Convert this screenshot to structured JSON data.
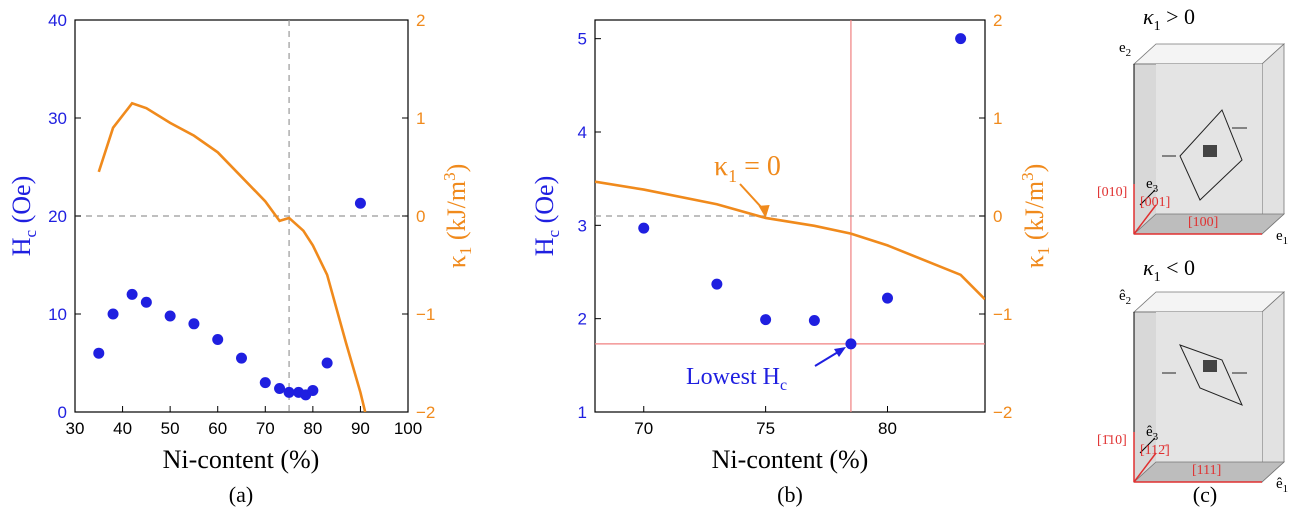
{
  "chart_data": [
    {
      "type": "scatter",
      "panel_label": "(a)",
      "xlabel": "Ni-content (%)",
      "ylabel_left": "H",
      "ylabel_left_sub": "c",
      "ylabel_left_unit": " (Oe)",
      "ylabel_right": "κ",
      "ylabel_right_sub": "1",
      "ylabel_right_unit": " (kJ/m",
      "ylabel_right_sup": "3",
      "ylabel_right_close": ")",
      "xlim": [
        30,
        100
      ],
      "ylim_left": [
        0,
        40
      ],
      "ylim_right": [
        -2,
        2
      ],
      "xticks": [
        "30",
        "40",
        "50",
        "60",
        "70",
        "80",
        "90",
        "100"
      ],
      "yticks_left": [
        "0",
        "10",
        "20",
        "30",
        "40"
      ],
      "yticks_right": [
        "−2",
        "−1",
        "0",
        "1",
        "2"
      ],
      "series": [
        {
          "name": "",
          "axis": "left",
          "kind": "scatter",
          "color": "#1f1fe0",
          "x": [
            35,
            38,
            42,
            45,
            50,
            55,
            60,
            65,
            70,
            73,
            75,
            77,
            78.5,
            80,
            83,
            90
          ],
          "y": [
            6.0,
            10.0,
            12.0,
            11.2,
            9.8,
            9.0,
            7.4,
            5.5,
            3.0,
            2.4,
            2.0,
            2.0,
            1.75,
            2.2,
            5.0,
            21.3
          ]
        },
        {
          "name": "",
          "axis": "right",
          "kind": "line",
          "color": "#f08a1c",
          "x": [
            35,
            38,
            42,
            45,
            50,
            55,
            60,
            65,
            70,
            73,
            75,
            78,
            80,
            83,
            87,
            90,
            91
          ],
          "y": [
            0.45,
            0.9,
            1.15,
            1.1,
            0.95,
            0.82,
            0.65,
            0.4,
            0.15,
            -0.05,
            -0.02,
            -0.15,
            -0.3,
            -0.6,
            -1.3,
            -1.8,
            -2.0
          ]
        }
      ],
      "ref_lines": {
        "x": 75,
        "y_right": 0
      }
    },
    {
      "type": "scatter",
      "panel_label": "(b)",
      "xlabel": "Ni-content (%)",
      "ylabel_left": "H",
      "ylabel_left_sub": "c",
      "ylabel_left_unit": " (Oe)",
      "ylabel_right": "κ",
      "ylabel_right_sub": "1",
      "ylabel_right_unit": " (kJ/m",
      "ylabel_right_sup": "3",
      "ylabel_right_close": ")",
      "xlim": [
        68,
        84
      ],
      "ylim_left": [
        1,
        5.2
      ],
      "ylim_right": [
        -2,
        2
      ],
      "xticks": [
        "70",
        "75",
        "80"
      ],
      "yticks_left": [
        "1",
        "2",
        "3",
        "4",
        "5"
      ],
      "yticks_right": [
        "−2",
        "−1",
        "0",
        "1",
        "2"
      ],
      "series": [
        {
          "name": "",
          "axis": "left",
          "kind": "scatter",
          "color": "#1f1fe0",
          "x": [
            70,
            73,
            75,
            77,
            78.5,
            80,
            83
          ],
          "y": [
            2.97,
            2.37,
            1.99,
            1.98,
            1.73,
            2.22,
            5.0
          ]
        },
        {
          "name": "",
          "axis": "right",
          "kind": "line",
          "color": "#f08a1c",
          "x": [
            68,
            70,
            73,
            75,
            77,
            78.5,
            80,
            83,
            84
          ],
          "y": [
            0.35,
            0.27,
            0.12,
            -0.02,
            -0.1,
            -0.18,
            -0.3,
            -0.6,
            -0.85
          ]
        }
      ],
      "ref_lines": {
        "x": 78.5,
        "y_left": 1.73,
        "y_right": 0
      },
      "annotations": {
        "kappa_zero": "κ",
        "kappa_zero_sub": "1",
        "kappa_zero_rest": " = 0",
        "lowest": "Lowest H",
        "lowest_sub": "c"
      }
    }
  ],
  "panel_c": {
    "panel_label": "(c)",
    "top": {
      "title": "κ",
      "title_sub": "1",
      "title_rest": " > 0",
      "axis_x": "e",
      "axis_x_sub": "1",
      "axis_y": "e",
      "axis_y_sub": "2",
      "axis_z": "e",
      "axis_z_sub": "3",
      "dir_x": "[100]",
      "dir_y": "[010]",
      "dir_z": "[001]"
    },
    "bottom": {
      "title": "κ",
      "title_sub": "1",
      "title_rest": " < 0",
      "axis_x": "ê",
      "axis_x_sub": "1",
      "axis_y": "ê",
      "axis_y_sub": "2",
      "axis_z": "ê",
      "axis_z_sub": "3",
      "dir_x": "[111]",
      "dir_y": "[1̄10]",
      "dir_z": "[112̄]"
    }
  },
  "colors": {
    "blue": "#1f1fe0",
    "orange": "#f08a1c",
    "red": "#e03030",
    "grid": "#999999"
  }
}
